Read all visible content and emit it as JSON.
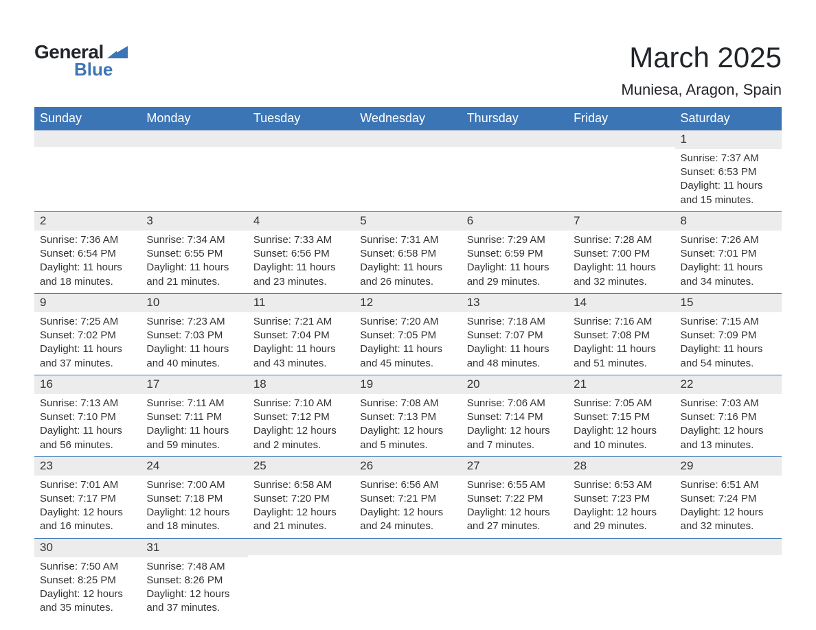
{
  "logo": {
    "text1": "General",
    "text2": "Blue",
    "color_dark": "#22252a",
    "color_blue": "#3c75b5"
  },
  "title": "March 2025",
  "location": "Muniesa, Aragon, Spain",
  "colors": {
    "header_bg": "#3c75b5",
    "header_text": "#ffffff",
    "daynum_bg": "#ececec",
    "border": "#3c75b5",
    "text": "#333333",
    "page_bg": "#ffffff"
  },
  "fonts": {
    "title_size": 42,
    "location_size": 22,
    "header_size": 18,
    "body_size": 15
  },
  "weekdays": [
    "Sunday",
    "Monday",
    "Tuesday",
    "Wednesday",
    "Thursday",
    "Friday",
    "Saturday"
  ],
  "weeks": [
    [
      null,
      null,
      null,
      null,
      null,
      null,
      {
        "n": "1",
        "sr": "Sunrise: 7:37 AM",
        "ss": "Sunset: 6:53 PM",
        "dl": "Daylight: 11 hours and 15 minutes."
      }
    ],
    [
      {
        "n": "2",
        "sr": "Sunrise: 7:36 AM",
        "ss": "Sunset: 6:54 PM",
        "dl": "Daylight: 11 hours and 18 minutes."
      },
      {
        "n": "3",
        "sr": "Sunrise: 7:34 AM",
        "ss": "Sunset: 6:55 PM",
        "dl": "Daylight: 11 hours and 21 minutes."
      },
      {
        "n": "4",
        "sr": "Sunrise: 7:33 AM",
        "ss": "Sunset: 6:56 PM",
        "dl": "Daylight: 11 hours and 23 minutes."
      },
      {
        "n": "5",
        "sr": "Sunrise: 7:31 AM",
        "ss": "Sunset: 6:58 PM",
        "dl": "Daylight: 11 hours and 26 minutes."
      },
      {
        "n": "6",
        "sr": "Sunrise: 7:29 AM",
        "ss": "Sunset: 6:59 PM",
        "dl": "Daylight: 11 hours and 29 minutes."
      },
      {
        "n": "7",
        "sr": "Sunrise: 7:28 AM",
        "ss": "Sunset: 7:00 PM",
        "dl": "Daylight: 11 hours and 32 minutes."
      },
      {
        "n": "8",
        "sr": "Sunrise: 7:26 AM",
        "ss": "Sunset: 7:01 PM",
        "dl": "Daylight: 11 hours and 34 minutes."
      }
    ],
    [
      {
        "n": "9",
        "sr": "Sunrise: 7:25 AM",
        "ss": "Sunset: 7:02 PM",
        "dl": "Daylight: 11 hours and 37 minutes."
      },
      {
        "n": "10",
        "sr": "Sunrise: 7:23 AM",
        "ss": "Sunset: 7:03 PM",
        "dl": "Daylight: 11 hours and 40 minutes."
      },
      {
        "n": "11",
        "sr": "Sunrise: 7:21 AM",
        "ss": "Sunset: 7:04 PM",
        "dl": "Daylight: 11 hours and 43 minutes."
      },
      {
        "n": "12",
        "sr": "Sunrise: 7:20 AM",
        "ss": "Sunset: 7:05 PM",
        "dl": "Daylight: 11 hours and 45 minutes."
      },
      {
        "n": "13",
        "sr": "Sunrise: 7:18 AM",
        "ss": "Sunset: 7:07 PM",
        "dl": "Daylight: 11 hours and 48 minutes."
      },
      {
        "n": "14",
        "sr": "Sunrise: 7:16 AM",
        "ss": "Sunset: 7:08 PM",
        "dl": "Daylight: 11 hours and 51 minutes."
      },
      {
        "n": "15",
        "sr": "Sunrise: 7:15 AM",
        "ss": "Sunset: 7:09 PM",
        "dl": "Daylight: 11 hours and 54 minutes."
      }
    ],
    [
      {
        "n": "16",
        "sr": "Sunrise: 7:13 AM",
        "ss": "Sunset: 7:10 PM",
        "dl": "Daylight: 11 hours and 56 minutes."
      },
      {
        "n": "17",
        "sr": "Sunrise: 7:11 AM",
        "ss": "Sunset: 7:11 PM",
        "dl": "Daylight: 11 hours and 59 minutes."
      },
      {
        "n": "18",
        "sr": "Sunrise: 7:10 AM",
        "ss": "Sunset: 7:12 PM",
        "dl": "Daylight: 12 hours and 2 minutes."
      },
      {
        "n": "19",
        "sr": "Sunrise: 7:08 AM",
        "ss": "Sunset: 7:13 PM",
        "dl": "Daylight: 12 hours and 5 minutes."
      },
      {
        "n": "20",
        "sr": "Sunrise: 7:06 AM",
        "ss": "Sunset: 7:14 PM",
        "dl": "Daylight: 12 hours and 7 minutes."
      },
      {
        "n": "21",
        "sr": "Sunrise: 7:05 AM",
        "ss": "Sunset: 7:15 PM",
        "dl": "Daylight: 12 hours and 10 minutes."
      },
      {
        "n": "22",
        "sr": "Sunrise: 7:03 AM",
        "ss": "Sunset: 7:16 PM",
        "dl": "Daylight: 12 hours and 13 minutes."
      }
    ],
    [
      {
        "n": "23",
        "sr": "Sunrise: 7:01 AM",
        "ss": "Sunset: 7:17 PM",
        "dl": "Daylight: 12 hours and 16 minutes."
      },
      {
        "n": "24",
        "sr": "Sunrise: 7:00 AM",
        "ss": "Sunset: 7:18 PM",
        "dl": "Daylight: 12 hours and 18 minutes."
      },
      {
        "n": "25",
        "sr": "Sunrise: 6:58 AM",
        "ss": "Sunset: 7:20 PM",
        "dl": "Daylight: 12 hours and 21 minutes."
      },
      {
        "n": "26",
        "sr": "Sunrise: 6:56 AM",
        "ss": "Sunset: 7:21 PM",
        "dl": "Daylight: 12 hours and 24 minutes."
      },
      {
        "n": "27",
        "sr": "Sunrise: 6:55 AM",
        "ss": "Sunset: 7:22 PM",
        "dl": "Daylight: 12 hours and 27 minutes."
      },
      {
        "n": "28",
        "sr": "Sunrise: 6:53 AM",
        "ss": "Sunset: 7:23 PM",
        "dl": "Daylight: 12 hours and 29 minutes."
      },
      {
        "n": "29",
        "sr": "Sunrise: 6:51 AM",
        "ss": "Sunset: 7:24 PM",
        "dl": "Daylight: 12 hours and 32 minutes."
      }
    ],
    [
      {
        "n": "30",
        "sr": "Sunrise: 7:50 AM",
        "ss": "Sunset: 8:25 PM",
        "dl": "Daylight: 12 hours and 35 minutes."
      },
      {
        "n": "31",
        "sr": "Sunrise: 7:48 AM",
        "ss": "Sunset: 8:26 PM",
        "dl": "Daylight: 12 hours and 37 minutes."
      },
      null,
      null,
      null,
      null,
      null
    ]
  ]
}
